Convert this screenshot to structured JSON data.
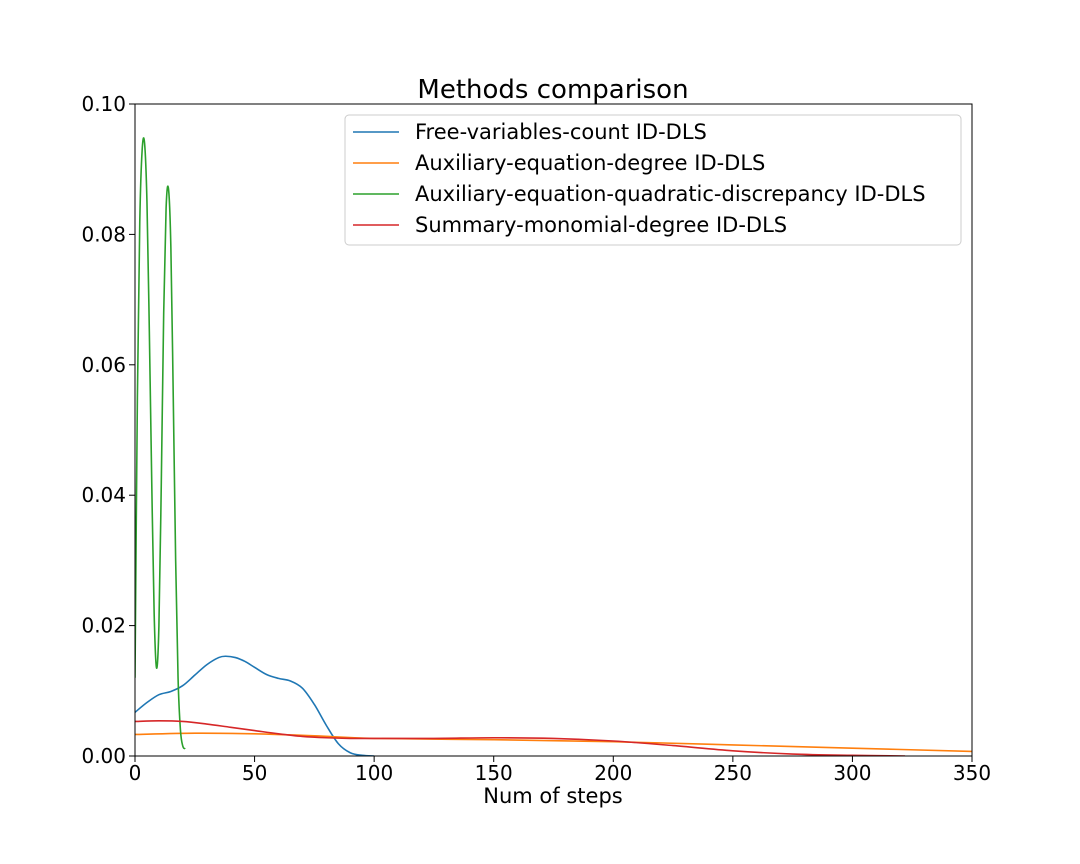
{
  "chart_data": {
    "type": "line",
    "title": "Methods comparison",
    "xlabel": "Num of steps",
    "ylabel": "",
    "xlim": [
      0,
      350
    ],
    "ylim": [
      0,
      0.1
    ],
    "x_ticks": [
      0,
      50,
      100,
      150,
      200,
      250,
      300,
      350
    ],
    "x_tick_labels": [
      "0",
      "50",
      "100",
      "150",
      "200",
      "250",
      "300",
      "350"
    ],
    "y_ticks": [
      0,
      0.02,
      0.04,
      0.06,
      0.08,
      0.1
    ],
    "y_tick_labels": [
      "0.00",
      "0.02",
      "0.04",
      "0.06",
      "0.08",
      "0.10"
    ],
    "grid": false,
    "legend_position": "top-right",
    "series": [
      {
        "name": "Free-variables-count ID-DLS",
        "color": "#1f77b4",
        "x": [
          0,
          5,
          10,
          15,
          20,
          25,
          30,
          35,
          38,
          42,
          46,
          50,
          55,
          60,
          65,
          70,
          75,
          80,
          85,
          90,
          95,
          100
        ],
        "y": [
          0.0067,
          0.0082,
          0.0094,
          0.0099,
          0.0108,
          0.0124,
          0.014,
          0.0151,
          0.0153,
          0.0151,
          0.0145,
          0.0136,
          0.0125,
          0.0119,
          0.0115,
          0.0104,
          0.0079,
          0.0047,
          0.0019,
          0.0005,
          0.0001,
          0.0
        ]
      },
      {
        "name": "Auxiliary-equation-degree ID-DLS",
        "color": "#ff7f0e",
        "x": [
          0,
          25,
          50,
          75,
          100,
          150,
          200,
          250,
          300,
          350
        ],
        "y": [
          0.0033,
          0.0035,
          0.0034,
          0.0031,
          0.0027,
          0.0025,
          0.0022,
          0.0017,
          0.0012,
          0.0007
        ]
      },
      {
        "name": "Auxiliary-equation-quadratic-discrepancy ID-DLS",
        "color": "#2ca02c",
        "x": [
          0,
          1,
          2,
          3,
          4,
          5,
          6,
          7,
          8,
          9,
          10,
          11,
          12,
          13,
          14,
          15,
          16,
          17,
          18,
          19,
          20,
          21
        ],
        "y": [
          0.012,
          0.055,
          0.082,
          0.093,
          0.094,
          0.085,
          0.065,
          0.042,
          0.022,
          0.0135,
          0.02,
          0.042,
          0.068,
          0.084,
          0.087,
          0.078,
          0.055,
          0.03,
          0.012,
          0.004,
          0.0015,
          0.0011
        ]
      },
      {
        "name": "Summary-monomial-degree ID-DLS",
        "color": "#d62728",
        "x": [
          0,
          10,
          20,
          30,
          40,
          50,
          60,
          70,
          80,
          90,
          100,
          125,
          150,
          175,
          200,
          225,
          250,
          275,
          300,
          322
        ],
        "y": [
          0.0053,
          0.0054,
          0.0053,
          0.0049,
          0.0044,
          0.0039,
          0.0034,
          0.003,
          0.0028,
          0.0027,
          0.0027,
          0.0027,
          0.0028,
          0.0027,
          0.0023,
          0.0016,
          0.0008,
          0.0003,
          0.0001,
          0.0
        ]
      }
    ]
  }
}
